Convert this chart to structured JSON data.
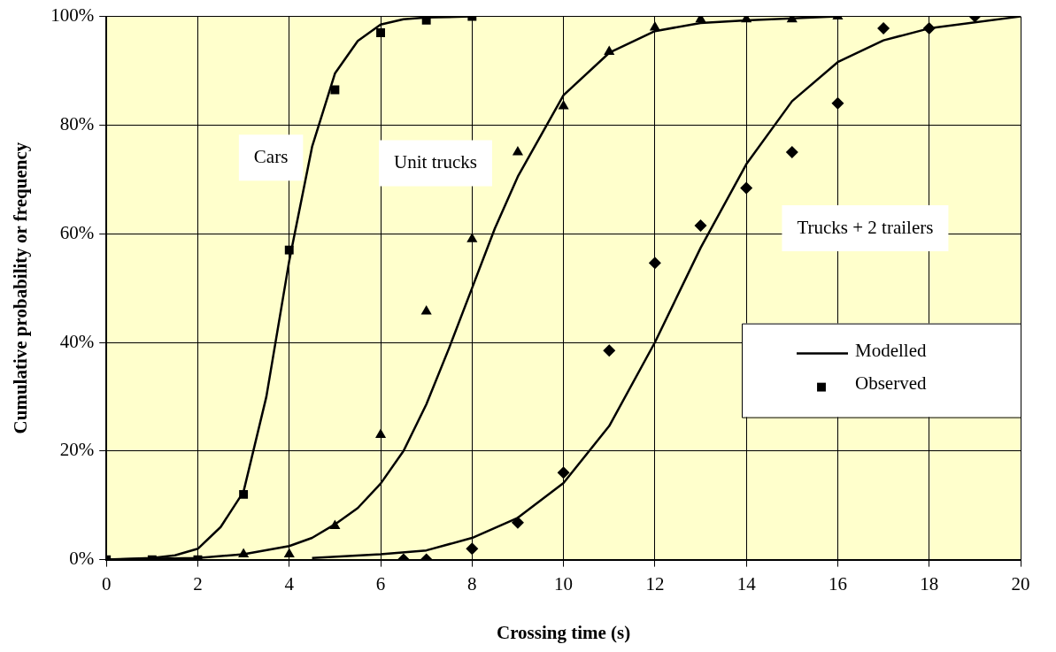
{
  "chart_data": {
    "type": "line",
    "xlabel": "Crossing time (s)",
    "ylabel": "Cumulative probability or frequency",
    "xlim": [
      0,
      20
    ],
    "xticks": [
      0,
      2,
      4,
      6,
      8,
      10,
      12,
      14,
      16,
      18,
      20
    ],
    "ylim": [
      0,
      100
    ],
    "yticks": [
      {
        "value": 0,
        "label": "0%"
      },
      {
        "value": 20,
        "label": "20%"
      },
      {
        "value": 40,
        "label": "40%"
      },
      {
        "value": 60,
        "label": "60%"
      },
      {
        "value": 80,
        "label": "80%"
      },
      {
        "value": 100,
        "label": "100%"
      }
    ],
    "grid": true,
    "legend": "right",
    "series": [
      {
        "name": "Modelled",
        "color": "#000000",
        "marker": "none",
        "x": [
          0,
          1,
          1.5,
          2,
          2.5,
          3,
          3.5,
          4,
          4.5,
          5,
          5.5,
          6,
          6.5,
          7,
          8
        ],
        "values": [
          0,
          0.3,
          0.8,
          2,
          6,
          12.5,
          30,
          55,
          76,
          89.5,
          95.5,
          98.5,
          99.5,
          99.8,
          100
        ]
      },
      {
        "color": "#000000",
        "marker": "none",
        "x": [
          0,
          2,
          3,
          4,
          4.5,
          5,
          5.5,
          6,
          6.5,
          7,
          7.5,
          8,
          8.5,
          9,
          10,
          11,
          12,
          13,
          14,
          16
        ],
        "values": [
          0,
          0.3,
          1,
          2.5,
          4,
          6.5,
          9.5,
          14,
          20,
          28.6,
          39,
          50,
          61,
          70.5,
          85.5,
          93.3,
          97.3,
          98.8,
          99.3,
          100
        ]
      },
      {
        "color": "#000000",
        "marker": "none",
        "x": [
          4.5,
          6,
          7,
          8,
          9,
          10,
          11,
          12,
          13,
          14,
          15,
          16,
          17,
          18,
          20
        ],
        "values": [
          0.3,
          1,
          1.7,
          4,
          7.7,
          14.1,
          24.6,
          40,
          57.4,
          72.8,
          84.4,
          91.6,
          95.6,
          97.8,
          100
        ]
      },
      {
        "name": "Observed",
        "type": "scatter",
        "color": "#000000",
        "marker": "square",
        "x": [
          0,
          1,
          2,
          3,
          4,
          5,
          6,
          7,
          8
        ],
        "values": [
          0,
          0,
          0,
          12,
          57,
          86.5,
          97,
          99.3,
          100
        ]
      },
      {
        "type": "scatter",
        "color": "#000000",
        "marker": "triangle",
        "x": [
          3,
          4,
          5,
          6,
          7,
          8,
          9,
          10,
          11,
          12,
          13,
          14,
          15,
          16
        ],
        "values": [
          1,
          1,
          6.2,
          23,
          45.7,
          59,
          75,
          83.5,
          93.5,
          98,
          99.5,
          99.5,
          99.5,
          100
        ]
      },
      {
        "type": "scatter",
        "color": "#000000",
        "marker": "diamond",
        "x": [
          6.5,
          7,
          8,
          9,
          10,
          11,
          12,
          13,
          14,
          15,
          16,
          17,
          18,
          19
        ],
        "values": [
          0,
          0,
          2,
          6.8,
          16,
          38.5,
          54.6,
          61.5,
          68.4,
          75,
          84,
          97.8,
          97.8,
          100
        ]
      }
    ],
    "annotations": [
      "Cars",
      "Unit trucks",
      "Trucks + 2 trailers"
    ]
  }
}
